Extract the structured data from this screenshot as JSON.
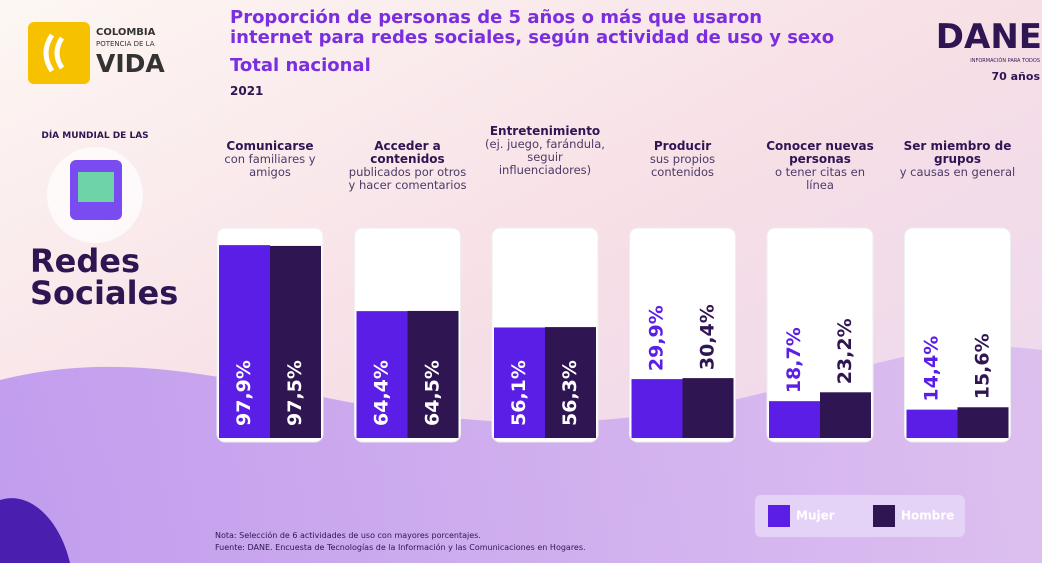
{
  "branding": {
    "country_line1": "COLOMBIA",
    "country_line2": "POTENCIA DE LA",
    "country_line3": "VIDA",
    "agency": "DANE",
    "agency_tagline": "INFORMACIÓN PARA TODOS",
    "anniversary": "70 años",
    "day_label": "DÍA MUNDIAL DE LAS",
    "topic": "Redes Sociales"
  },
  "chart_data": {
    "type": "bar",
    "title": "Proporción de personas de 5 años o más que usaron internet para redes sociales, según actividad de uso y sexo",
    "subtitle": "Total nacional",
    "year": "2021",
    "categories": [
      "Comunicarse",
      "Acceder a contenidos",
      "Entretenimiento",
      "Producir",
      "Conocer nuevas personas",
      "Ser miembro de grupos"
    ],
    "category_descriptions": [
      "con familiares y amigos",
      "publicados por otros y hacer comentarios",
      "(ej. juego, farándula, seguir influenciadores)",
      "sus propios contenidos",
      "o tener citas en línea",
      "y causas en general"
    ],
    "series": [
      {
        "name": "Mujer",
        "color": "#5b1ee6",
        "values": [
          97.9,
          64.4,
          56.1,
          29.9,
          18.7,
          14.4
        ],
        "value_labels": [
          "97,9%",
          "64,4%",
          "56,1%",
          "29,9%",
          "18,7%",
          "14,4%"
        ]
      },
      {
        "name": "Hombre",
        "color": "#2f1552",
        "values": [
          97.5,
          64.5,
          56.3,
          30.4,
          23.2,
          15.6
        ],
        "value_labels": [
          "97,5%",
          "64,5%",
          "56,3%",
          "30,4%",
          "23,2%",
          "15,6%"
        ]
      }
    ],
    "ylim": [
      0,
      100
    ],
    "note": "Nota: Selección de 6 actividades de uso con mayores porcentajes.",
    "source": "Fuente: DANE. Encuesta de Tecnologías de la Información y las Comunicaciones en Hogares."
  }
}
